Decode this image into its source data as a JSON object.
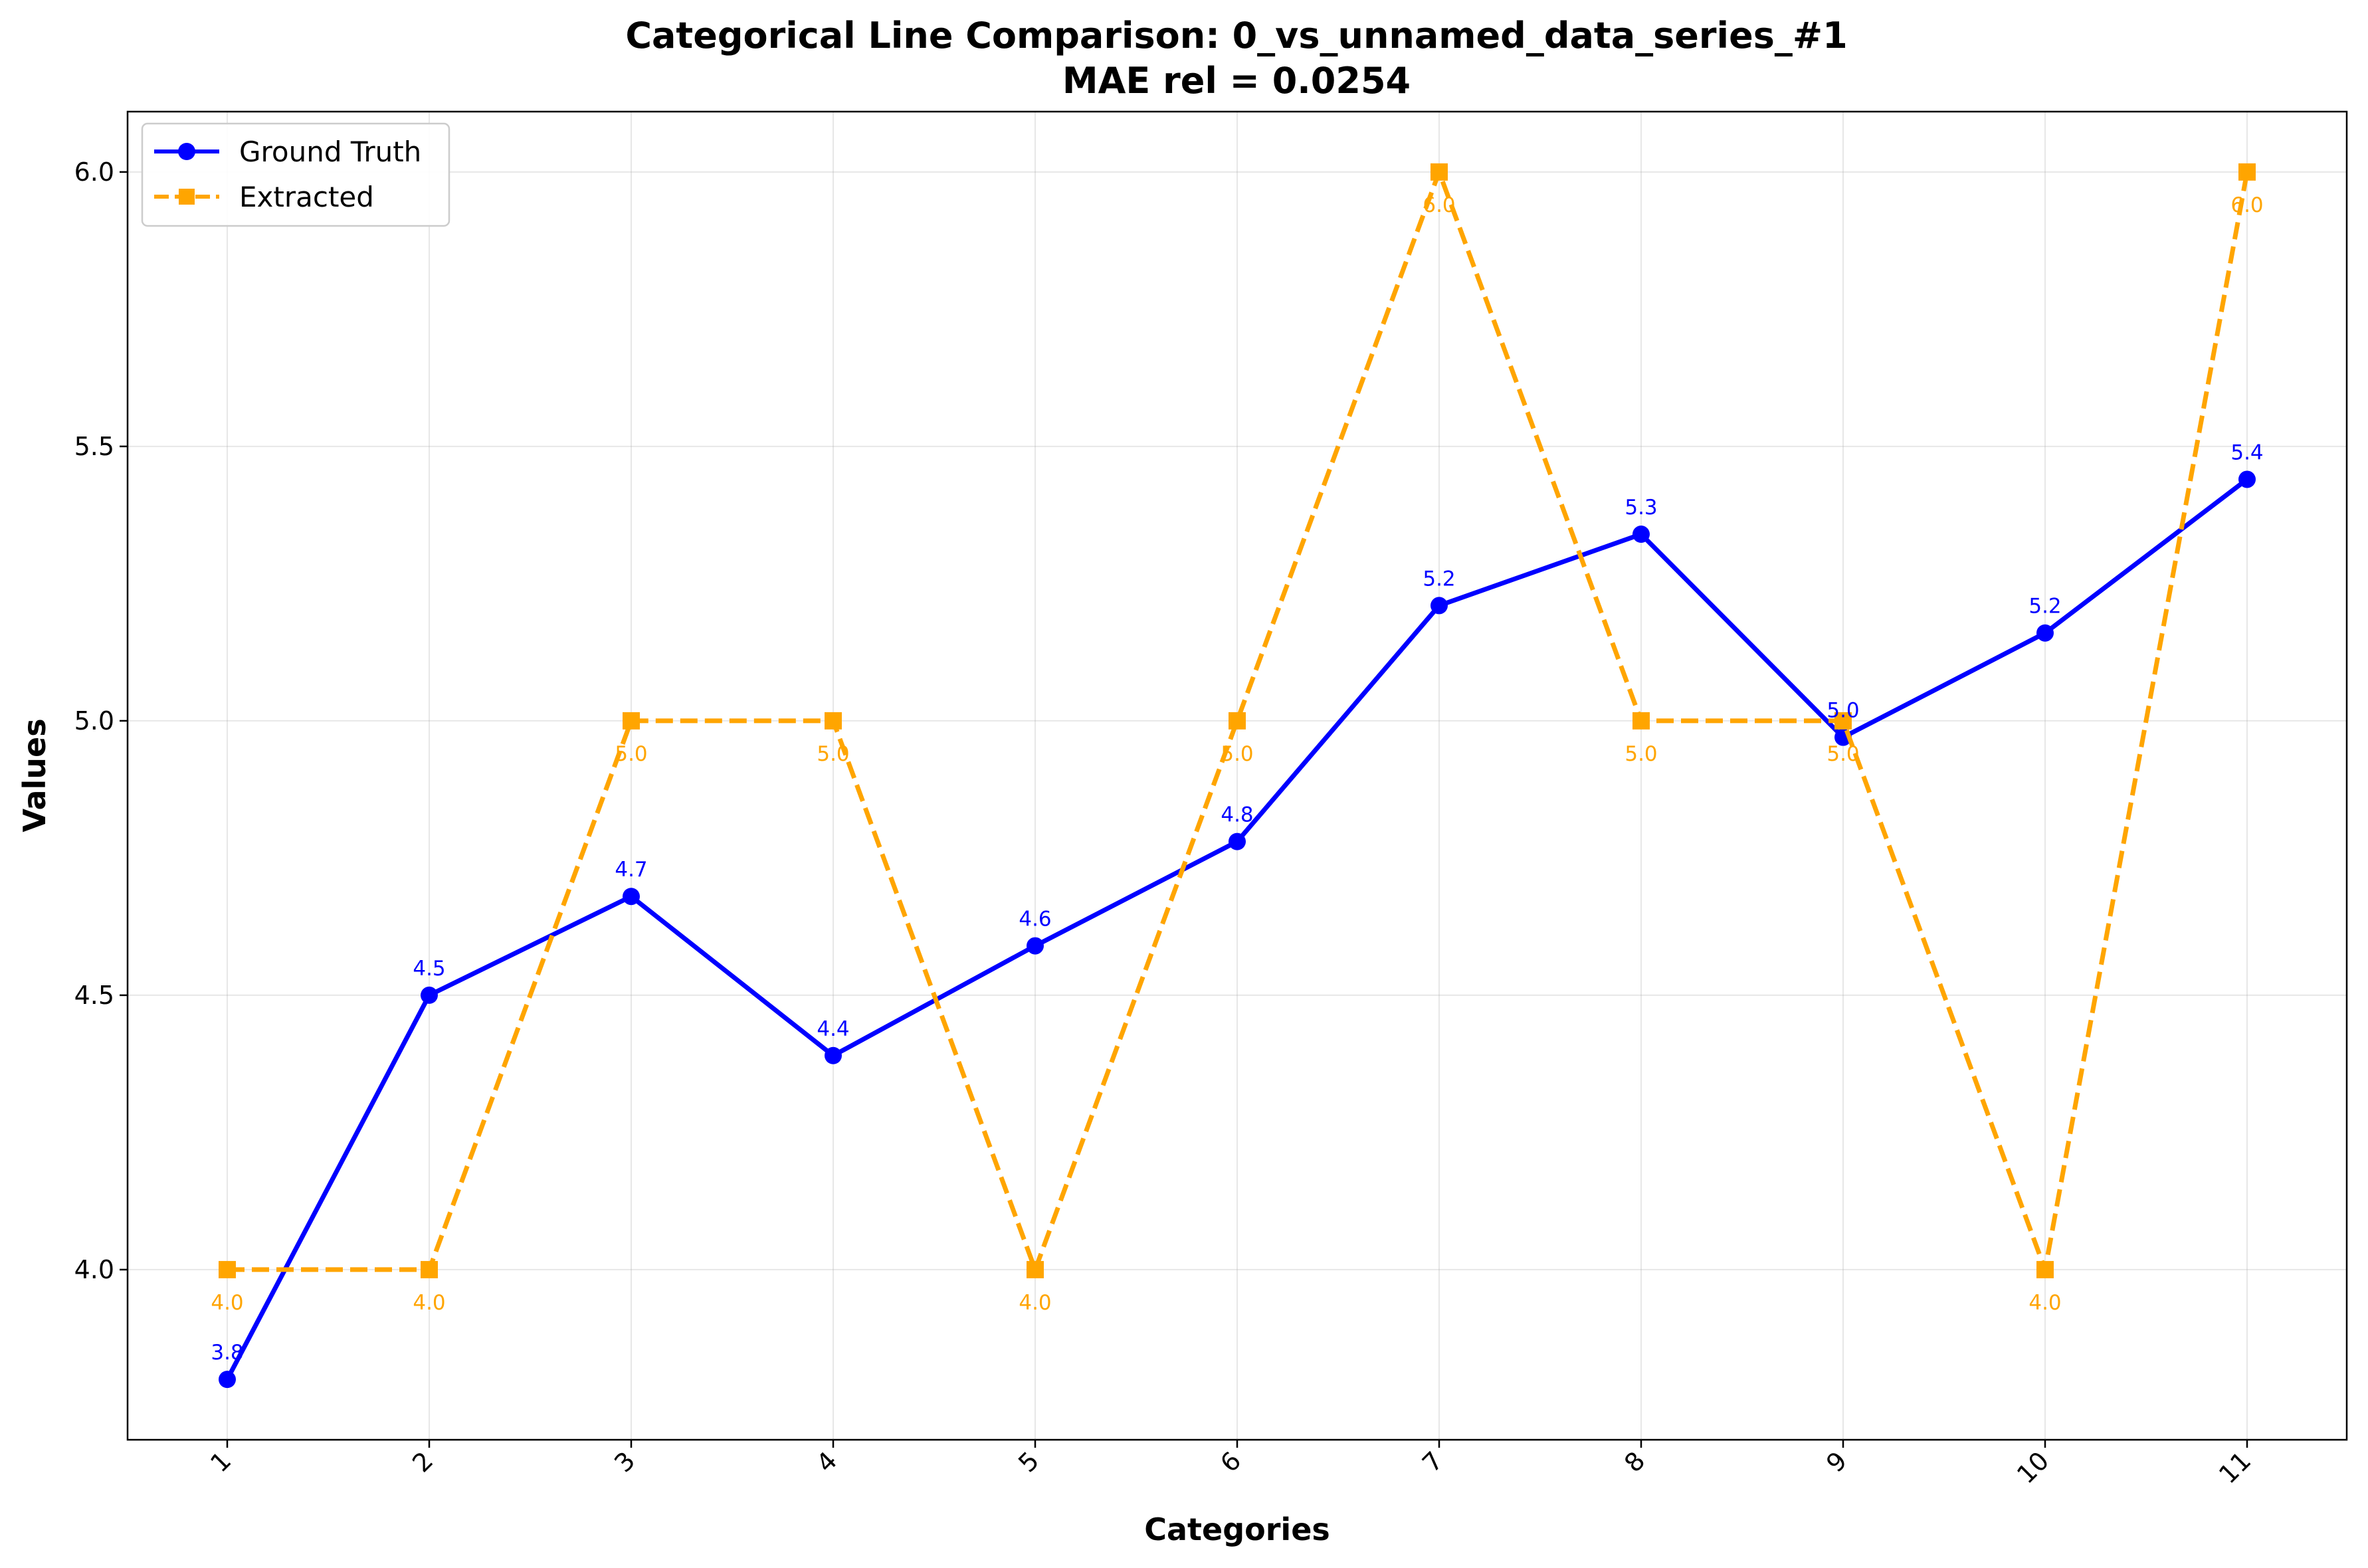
{
  "chart_data": {
    "type": "line",
    "title_line1": "Categorical Line Comparison: 0_vs_unnamed_data_series_#1",
    "title_line2": "MAE rel = 0.0254",
    "xlabel": "Categories",
    "ylabel": "Values",
    "categories": [
      "1",
      "2",
      "3",
      "4",
      "5",
      "6",
      "7",
      "8",
      "9",
      "10",
      "11"
    ],
    "ylim": [
      3.69,
      6.11
    ],
    "yticks": [
      "4.0",
      "4.5",
      "5.0",
      "5.5",
      "6.0"
    ],
    "grid": true,
    "legend_position": "upper-left",
    "series": [
      {
        "name": "Ground Truth",
        "color": "#0000ff",
        "marker": "circle",
        "line_style": "solid",
        "values": [
          3.8,
          4.5,
          4.68,
          4.39,
          4.59,
          4.78,
          5.21,
          5.34,
          4.97,
          5.16,
          5.44
        ],
        "labels": [
          "3.8",
          "4.5",
          "4.7",
          "4.4",
          "4.6",
          "4.8",
          "5.2",
          "5.3",
          "5.0",
          "5.2",
          "5.4"
        ]
      },
      {
        "name": "Extracted",
        "color": "#ffa500",
        "marker": "square",
        "line_style": "dashed",
        "values": [
          4.0,
          4.0,
          5.0,
          5.0,
          4.0,
          5.0,
          6.0,
          5.0,
          5.0,
          4.0,
          6.0
        ],
        "labels": [
          "4.0",
          "4.0",
          "5.0",
          "5.0",
          "4.0",
          "5.0",
          "6.0",
          "5.0",
          "5.0",
          "4.0",
          "6.0"
        ]
      }
    ]
  }
}
